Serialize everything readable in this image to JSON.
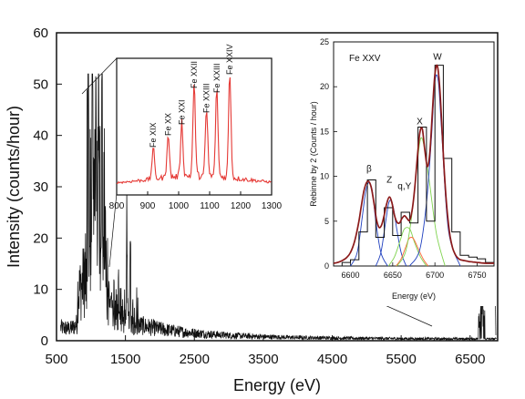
{
  "chart_data": [
    {
      "type": "line",
      "id": "main",
      "xlabel": "Energy (eV)",
      "ylabel": "Intensity (counts/hour)",
      "xlim": [
        500,
        6900
      ],
      "ylim": [
        0,
        60
      ],
      "xticks": [
        500,
        1500,
        2500,
        3500,
        4500,
        5500,
        6500
      ],
      "yticks": [
        0,
        10,
        20,
        30,
        40,
        50,
        60
      ],
      "grid": false,
      "legend": "none",
      "color": "#111111",
      "peaks": [
        {
          "x": 960,
          "y": 45
        },
        {
          "x": 1020,
          "y": 46
        },
        {
          "x": 1070,
          "y": 43
        },
        {
          "x": 1110,
          "y": 49
        },
        {
          "x": 1160,
          "y": 51
        },
        {
          "x": 1520,
          "y": 17
        },
        {
          "x": 1570,
          "y": 16
        },
        {
          "x": 6680,
          "y": 13
        }
      ]
    },
    {
      "type": "line",
      "id": "inset-fe-l",
      "xlim": [
        800,
        1300
      ],
      "xticks": [
        800,
        900,
        1000,
        1100,
        1200,
        1300
      ],
      "color": "#e53935",
      "annotations": [
        {
          "label": "Fe XIX",
          "x": 918
        },
        {
          "label": "Fe XX",
          "x": 966
        },
        {
          "label": "Fe XXI",
          "x": 1010
        },
        {
          "label": "Fe XXII",
          "x": 1050
        },
        {
          "label": "Fe XXIII",
          "x": 1090
        },
        {
          "label": "Fe XXIII",
          "x": 1123
        },
        {
          "label": "Fe XXIV",
          "x": 1165
        }
      ]
    },
    {
      "type": "line",
      "id": "inset-fe-k",
      "title": "Fe XXV",
      "ylabel": "Rebinne by 2 (Counts / hour)",
      "xlabel": "Energy (eV)",
      "xlim": [
        6580,
        6770
      ],
      "ylim": [
        0,
        25
      ],
      "xticks": [
        6600,
        6650,
        6700,
        6750
      ],
      "yticks": [
        0,
        5,
        10,
        15,
        20,
        25
      ],
      "annotations": [
        {
          "label": "β",
          "x": 6622,
          "y": 10.5
        },
        {
          "label": "Z",
          "x": 6646,
          "y": 9.3
        },
        {
          "label": "q,Y",
          "x": 6664,
          "y": 8.6
        },
        {
          "label": "X",
          "x": 6682,
          "y": 15.8
        },
        {
          "label": "W",
          "x": 6703,
          "y": 23.0
        }
      ],
      "series": [
        {
          "color": "#111111",
          "style": "step",
          "x": [
            6580,
            6590,
            6600,
            6610,
            6620,
            6630,
            6640,
            6650,
            6660,
            6670,
            6680,
            6690,
            6700,
            6710,
            6720,
            6730,
            6740,
            6750,
            6760,
            6770
          ],
          "values": [
            0,
            0.4,
            0.7,
            3.8,
            9.6,
            3.2,
            6.5,
            3.4,
            6.0,
            4.8,
            15.5,
            5.0,
            22.4,
            12.0,
            3.8,
            1.2,
            1.0,
            0.8,
            0.4,
            0
          ]
        },
        {
          "color": "#8b1a1a",
          "style": "smooth",
          "x": [
            6580,
            6585,
            6590,
            6595,
            6600,
            6605,
            6610,
            6613,
            6616,
            6619,
            6622,
            6625,
            6628,
            6631,
            6634,
            6637,
            6640,
            6643,
            6646,
            6649,
            6652,
            6655,
            6658,
            6661,
            6664,
            6667,
            6670,
            6673,
            6676,
            6679,
            6682,
            6685,
            6688,
            6691,
            6694,
            6697,
            6700,
            6703,
            6706,
            6709,
            6712,
            6715,
            6718,
            6721,
            6724,
            6727,
            6730,
            6735,
            6740,
            6745,
            6750,
            6755,
            6760,
            6770
          ],
          "values": [
            0.3,
            0.4,
            0.6,
            0.9,
            1.5,
            2.8,
            5.0,
            6.8,
            8.4,
            9.3,
            9.4,
            8.6,
            6.9,
            5.1,
            4.3,
            4.6,
            5.7,
            7.0,
            7.7,
            7.1,
            5.7,
            4.9,
            4.8,
            5.3,
            5.6,
            5.3,
            5.1,
            6.2,
            8.6,
            11.9,
            14.8,
            15.3,
            13.0,
            11.1,
            12.6,
            17.2,
            21.4,
            22.3,
            19.5,
            14.2,
            9.2,
            5.6,
            3.3,
            2.0,
            1.3,
            0.9,
            0.7,
            0.6,
            0.5,
            0.45,
            0.4,
            0.35,
            0.3,
            0.3
          ]
        },
        {
          "color": "#1f3fbf",
          "style": "smooth",
          "x": [
            6600,
            6608,
            6614,
            6618,
            6622,
            6626,
            6630,
            6636,
            6644
          ],
          "values": [
            0,
            1.5,
            5.5,
            8.3,
            9.3,
            8.3,
            5.0,
            1.5,
            0
          ]
        },
        {
          "color": "#1f3fbf",
          "style": "smooth",
          "x": [
            6630,
            6636,
            6641,
            6645,
            6648,
            6651,
            6655,
            6660,
            6666
          ],
          "values": [
            0,
            1.5,
            4.5,
            6.9,
            7.3,
            6.4,
            4.0,
            1.5,
            0
          ]
        },
        {
          "color": "#7fd34e",
          "style": "smooth",
          "x": [
            6645,
            6652,
            6658,
            6663,
            6667,
            6671,
            6676,
            6683,
            6690
          ],
          "values": [
            0,
            1.0,
            2.6,
            4.0,
            4.3,
            4.0,
            2.6,
            1.0,
            0
          ]
        },
        {
          "color": "#ff6a3d",
          "style": "smooth",
          "x": [
            6654,
            6660,
            6665,
            6669,
            6672,
            6675,
            6680,
            6686,
            6692
          ],
          "values": [
            0,
            0.8,
            2.0,
            3.0,
            3.2,
            3.0,
            2.0,
            0.8,
            0
          ]
        },
        {
          "color": "#7fd34e",
          "style": "smooth",
          "x": [
            6655,
            6665,
            6672,
            6678,
            6683,
            6688,
            6694,
            6702,
            6712
          ],
          "values": [
            0,
            1.5,
            5.2,
            10.5,
            14.2,
            13.0,
            9.0,
            3.5,
            0
          ]
        },
        {
          "color": "#1f3fbf",
          "style": "smooth",
          "x": [
            6670,
            6682,
            6690,
            6696,
            6700,
            6704,
            6708,
            6716,
            6730
          ],
          "values": [
            0,
            1.8,
            7.0,
            14.5,
            20.6,
            20.6,
            15.0,
            4.0,
            0
          ]
        }
      ]
    }
  ]
}
